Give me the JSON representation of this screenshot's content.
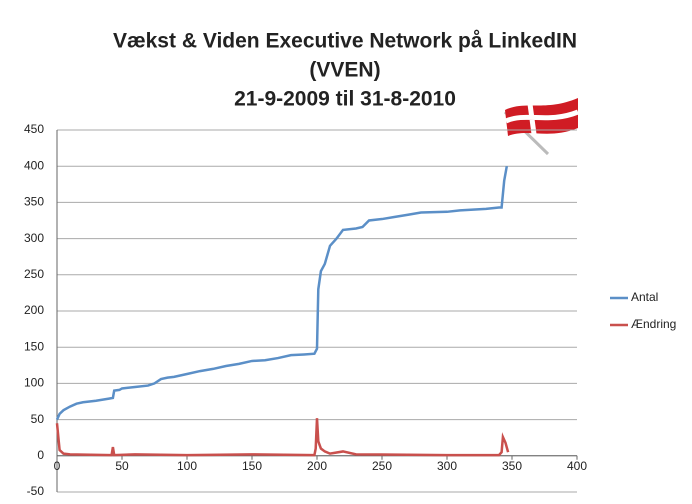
{
  "chart_data": {
    "type": "line",
    "title": [
      "Vækst & Viden Executive Network på LinkedIN",
      "(VVEN)",
      "21-9-2009 til 31-8-2010"
    ],
    "series": [
      {
        "name": "Antal",
        "color": "#5b8fc7",
        "x": [
          0,
          2,
          5,
          10,
          15,
          20,
          30,
          40,
          43,
          44,
          48,
          50,
          60,
          70,
          75,
          80,
          85,
          90,
          100,
          110,
          120,
          130,
          140,
          150,
          160,
          170,
          180,
          190,
          198,
          200,
          201,
          203,
          206,
          210,
          215,
          220,
          230,
          235,
          240,
          250,
          260,
          270,
          280,
          300,
          310,
          320,
          330,
          340,
          342,
          344,
          346
        ],
        "values": [
          50,
          58,
          63,
          68,
          72,
          74,
          76,
          79,
          80,
          90,
          91,
          93,
          95,
          97,
          100,
          106,
          108,
          109,
          113,
          117,
          120,
          124,
          127,
          131,
          132,
          135,
          139,
          140,
          141,
          148,
          230,
          255,
          265,
          290,
          300,
          312,
          314,
          316,
          325,
          327,
          330,
          333,
          336,
          337,
          339,
          340,
          341,
          343,
          343,
          380,
          400
        ]
      },
      {
        "name": "Ændring",
        "color": "#c9504d",
        "x": [
          0,
          2,
          5,
          10,
          42,
          43,
          44,
          60,
          100,
          150,
          198,
          199,
          200,
          201,
          203,
          206,
          210,
          220,
          230,
          300,
          340,
          342,
          343,
          345,
          347
        ],
        "values": [
          45,
          8,
          3,
          2,
          1,
          12,
          1,
          2,
          1,
          2,
          1,
          10,
          52,
          20,
          10,
          6,
          3,
          6,
          2,
          1,
          1,
          5,
          26,
          18,
          5
        ]
      }
    ],
    "xlim": [
      0,
      400
    ],
    "xticks": [
      0,
      50,
      100,
      150,
      200,
      250,
      300,
      350,
      400
    ],
    "ylim": [
      -50,
      450
    ],
    "yticks": [
      -50,
      0,
      50,
      100,
      150,
      200,
      250,
      300,
      350,
      400,
      450
    ],
    "grid": true,
    "legend": "right"
  }
}
